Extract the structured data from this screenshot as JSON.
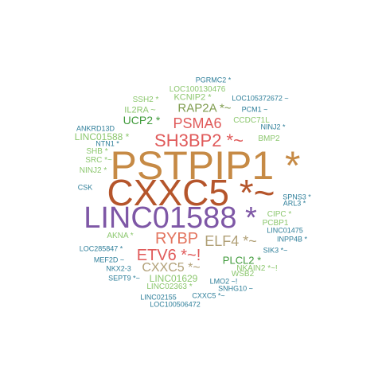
{
  "word_cloud": {
    "colors": {
      "tan": "#c68a45",
      "rust": "#b5552b",
      "purple": "#7e57a6",
      "red": "#e05a5a",
      "salmon": "#e3755f",
      "olive": "#7f9c4e",
      "green": "#3f9a3a",
      "lightgreen": "#8cc76e",
      "khaki": "#b1a077",
      "teal": "#2f7f9a",
      "blue": "#3e8fb0",
      "gray": "#8a8a8a"
    },
    "words": [
      {
        "text": "PSTPIP1 *",
        "color": "tan"
      },
      {
        "text": "CXXC5 *~",
        "color": "rust"
      },
      {
        "text": "LINC01588 *",
        "color": "purple"
      },
      {
        "text": "SH3BP2 *~",
        "color": "red"
      },
      {
        "text": "RYBP",
        "color": "salmon"
      },
      {
        "text": "ELF4 *~",
        "color": "khaki"
      },
      {
        "text": "ETV6 *~!",
        "color": "red"
      },
      {
        "text": "CXXC5 *~",
        "color": "khaki"
      },
      {
        "text": "PSMA6",
        "color": "red"
      },
      {
        "text": "RAP2A *~",
        "color": "olive"
      },
      {
        "text": "UCP2 *",
        "color": "green"
      },
      {
        "text": "PLCL2 *",
        "color": "green"
      },
      {
        "text": "LINC01629",
        "color": "lightgreen"
      },
      {
        "text": "LINC01588 *",
        "color": "lightgreen"
      },
      {
        "text": "KCNIP2 *",
        "color": "lightgreen"
      },
      {
        "text": "IL2RA ~",
        "color": "lightgreen"
      },
      {
        "text": "SSH2 *",
        "color": "lightgreen"
      },
      {
        "text": "LOC100130476",
        "color": "lightgreen"
      },
      {
        "text": "CCDC71L",
        "color": "lightgreen"
      },
      {
        "text": "BMP2",
        "color": "lightgreen"
      },
      {
        "text": "CIPC *",
        "color": "lightgreen"
      },
      {
        "text": "PCBP1",
        "color": "lightgreen"
      },
      {
        "text": "NKAIN2 *~!",
        "color": "lightgreen"
      },
      {
        "text": "WSB2",
        "color": "lightgreen"
      },
      {
        "text": "LINC02363 *",
        "color": "lightgreen"
      },
      {
        "text": "AKNA *",
        "color": "lightgreen"
      },
      {
        "text": "SHB *",
        "color": "lightgreen"
      },
      {
        "text": "SRC *~",
        "color": "lightgreen"
      },
      {
        "text": "NINJ2 *",
        "color": "lightgreen"
      },
      {
        "text": "PGRMC2 *",
        "color": "teal"
      },
      {
        "text": "LOC105372672 ~",
        "color": "teal"
      },
      {
        "text": "PCM1 ~",
        "color": "teal"
      },
      {
        "text": "NINJ2 *",
        "color": "teal"
      },
      {
        "text": "ANKRD13D",
        "color": "teal"
      },
      {
        "text": "NTN1 *",
        "color": "teal"
      },
      {
        "text": "CSK",
        "color": "teal"
      },
      {
        "text": "SPNS3 *",
        "color": "teal"
      },
      {
        "text": "ARL3 *",
        "color": "teal"
      },
      {
        "text": "LINC01475",
        "color": "teal"
      },
      {
        "text": "INPP4B *",
        "color": "teal"
      },
      {
        "text": "SIK3 *~",
        "color": "teal"
      },
      {
        "text": "LOC285847 *",
        "color": "teal"
      },
      {
        "text": "MEF2D ~",
        "color": "teal"
      },
      {
        "text": "NKX2-3",
        "color": "teal"
      },
      {
        "text": "SEPT9 *~",
        "color": "teal"
      },
      {
        "text": "LMO2 ~!",
        "color": "teal"
      },
      {
        "text": "SNHG10 ~",
        "color": "teal"
      },
      {
        "text": "CXXC5 *~",
        "color": "teal"
      },
      {
        "text": "LINC02155",
        "color": "teal"
      },
      {
        "text": "LOC100506472",
        "color": "teal"
      }
    ]
  }
}
